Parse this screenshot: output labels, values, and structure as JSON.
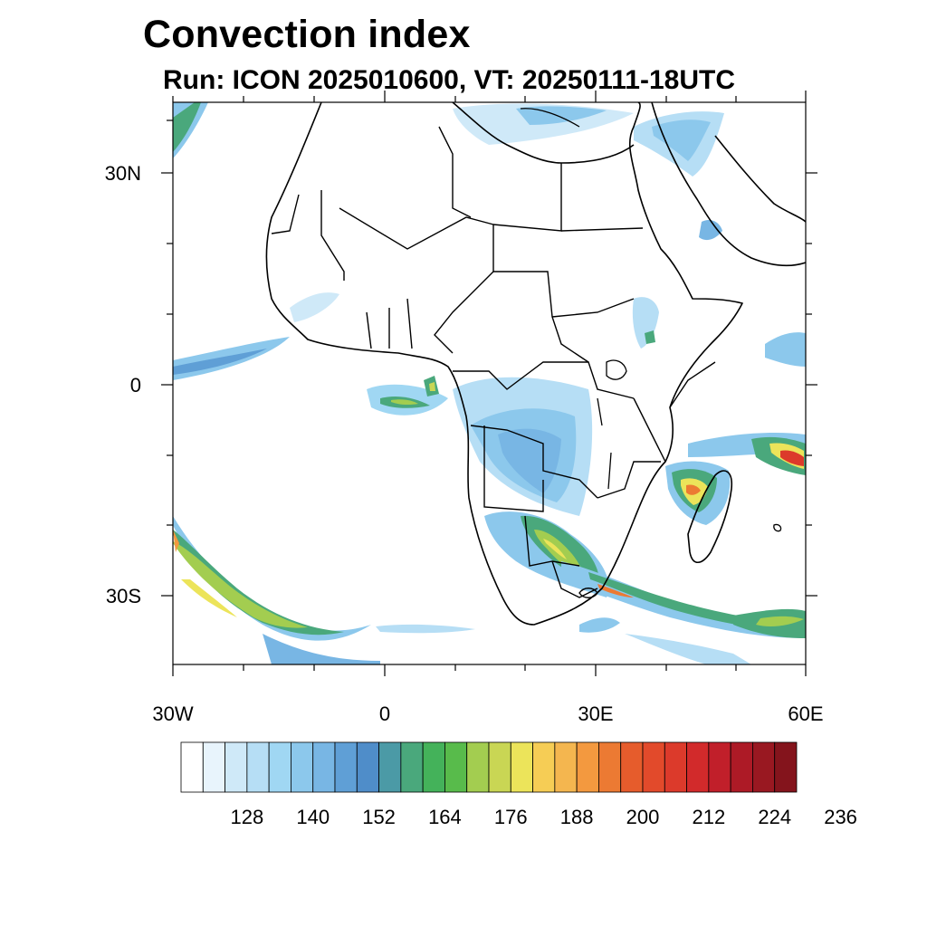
{
  "header": {
    "title": "Convection index",
    "subtitle": "Run: ICON 2025010600,  VT: 20250111-18UTC"
  },
  "axes": {
    "lat_labels": [
      "30N",
      "0",
      "30S"
    ],
    "lon_labels": [
      "30W",
      "0",
      "30E",
      "60E"
    ]
  },
  "colorbar": {
    "labels": [
      "128",
      "140",
      "152",
      "164",
      "176",
      "188",
      "200",
      "212",
      "224",
      "236"
    ],
    "colors": [
      "#ffffff",
      "#e8f4fc",
      "#cfe9f8",
      "#b6def5",
      "#a0d7f3",
      "#8cc8ec",
      "#78b6e4",
      "#5f9fd6",
      "#4f8dc9",
      "#4b9aa6",
      "#4aa87c",
      "#44b25a",
      "#58bb4b",
      "#a3cd50",
      "#c9d654",
      "#ece45a",
      "#f6cd55",
      "#f4b64f",
      "#f3993f",
      "#ec7a33",
      "#e65c2c",
      "#e24a2b",
      "#dc3a2b",
      "#d22a2b",
      "#c11f2a",
      "#ad1a26",
      "#991821",
      "#84141c"
    ]
  }
}
